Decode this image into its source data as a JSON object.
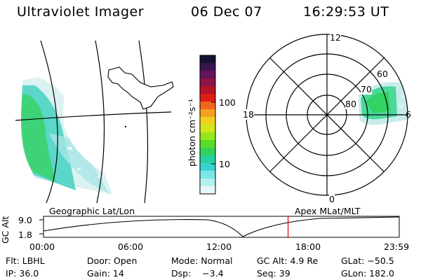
{
  "header": {
    "title": "Ultraviolet Imager",
    "date": "06 Dec 07",
    "time": "16:29:53 UT"
  },
  "colorbar": {
    "label": "photon cm⁻²s⁻¹",
    "ticks": [
      "100",
      "10"
    ],
    "colors": [
      "#141432",
      "#3c1450",
      "#64145a",
      "#8c1446",
      "#b41428",
      "#dc1e14",
      "#f0641e",
      "#f5a01e",
      "#f0d21e",
      "#d2e61e",
      "#96e61e",
      "#5adc28",
      "#32d25a",
      "#28d2a0",
      "#3cd2d2",
      "#7ce6e6",
      "#b4f0f0",
      "#e6f5f5"
    ]
  },
  "polar": {
    "mlt_labels": [
      "12",
      "18",
      "6",
      "0"
    ],
    "lat_labels": [
      "60",
      "70",
      "80"
    ]
  },
  "timeline": {
    "y_label": "GC Alt",
    "y_ticks": [
      "9.0",
      "1.8"
    ],
    "left_caption": "Geographic Lat/Lon",
    "right_caption": "Apex  MLat/MLT",
    "x_ticks": [
      "00:00",
      "06:00",
      "12:00",
      "18:00",
      "23:59"
    ],
    "marker_hour": 16.5
  },
  "info": {
    "row1": [
      "Flt: LBHL",
      "Door: Open",
      "Mode: Normal",
      "GC Alt: 4.9 Re",
      "GLat: −50.5"
    ],
    "row2": [
      "IP: 36.0",
      "Gain: 14",
      "Dsp:    −3.4",
      "Seq: 39",
      "GLon: 182.0"
    ]
  }
}
